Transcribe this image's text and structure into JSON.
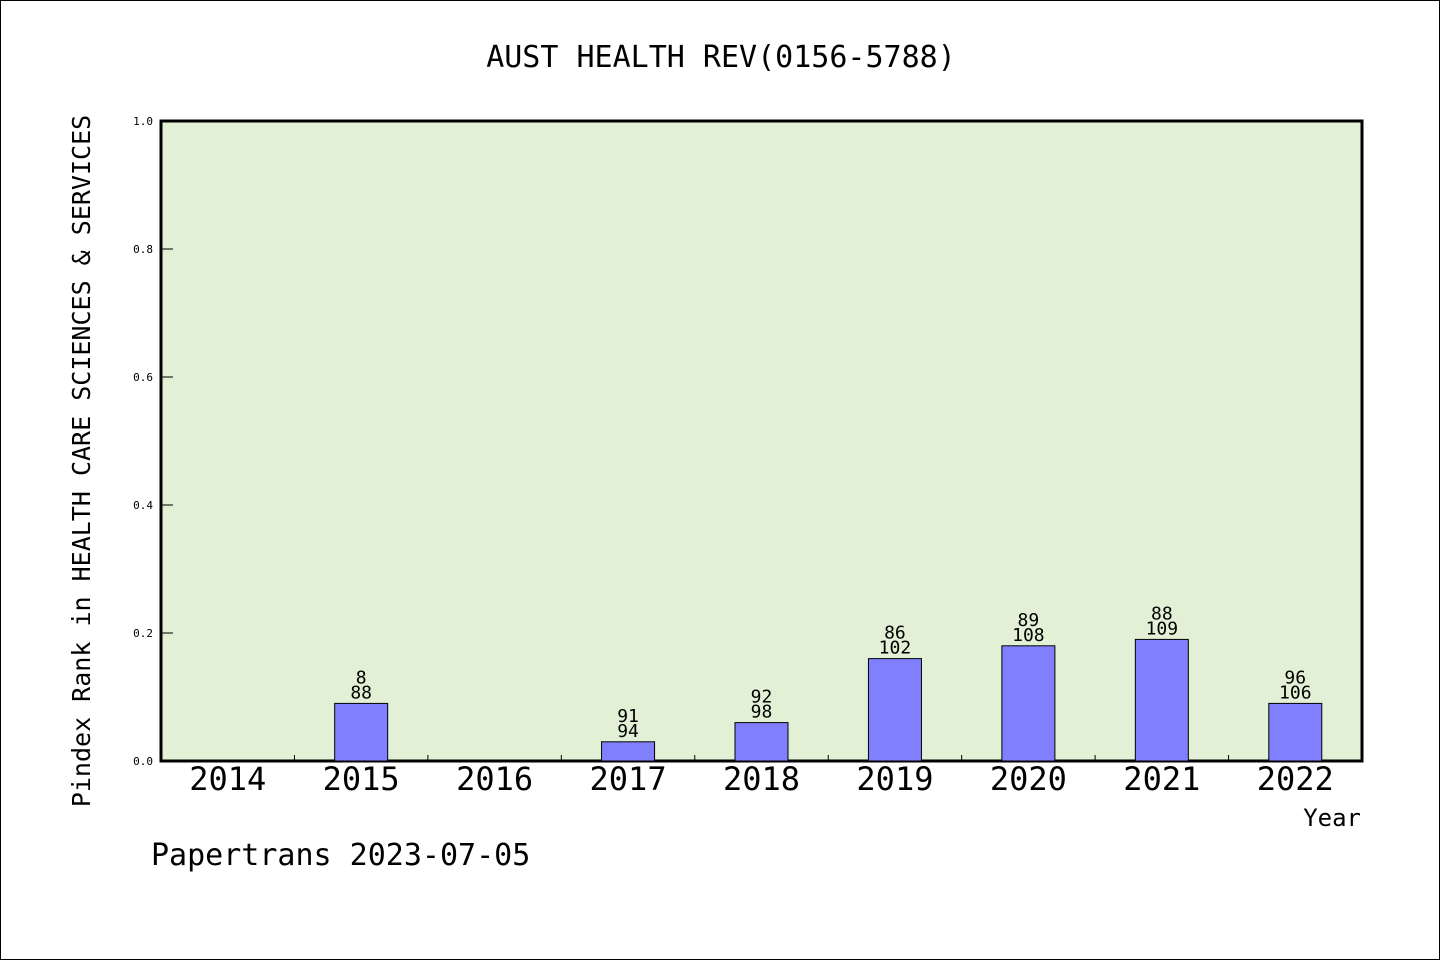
{
  "chart_data": {
    "type": "bar",
    "title": "AUST HEALTH REV(0156-5788)",
    "xlabel": "Year",
    "ylabel": "Pindex Rank in HEALTH CARE SCIENCES & SERVICES",
    "categories": [
      "2014",
      "2015",
      "2016",
      "2017",
      "2018",
      "2019",
      "2020",
      "2021",
      "2022"
    ],
    "values": [
      null,
      0.09,
      null,
      0.03,
      0.06,
      0.16,
      0.18,
      0.19,
      0.09
    ],
    "labels_top": [
      "",
      "8",
      "",
      "91",
      "92",
      "86",
      "89",
      "88",
      "96"
    ],
    "labels_bottom": [
      "",
      "88",
      "",
      "94",
      "98",
      "102",
      "108",
      "109",
      "106"
    ],
    "ylim": [
      0,
      1
    ],
    "yticks": [
      "0.0",
      "0.2",
      "0.4",
      "0.6",
      "0.8",
      "1.0"
    ],
    "grid": false,
    "legend": "none"
  },
  "credit": "Papertrans 2023-07-05",
  "colors": {
    "plot_background": "#e2f0d6",
    "bar_fill": "#8080ff",
    "bar_stroke": "#000000",
    "axis": "#000000",
    "page_background": "#ffffff"
  }
}
